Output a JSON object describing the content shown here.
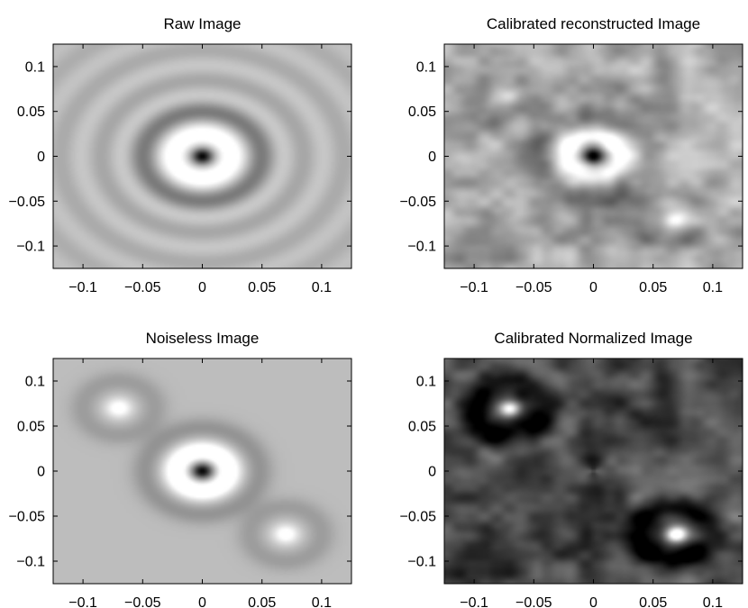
{
  "chart_data": [
    {
      "type": "heatmap",
      "title": "Raw Image",
      "colormap": "gray",
      "xlim": [
        -0.125,
        0.125
      ],
      "ylim": [
        -0.125,
        0.125
      ],
      "xticks": [
        -0.1,
        -0.05,
        0,
        0.05,
        0.1
      ],
      "yticks": [
        0.1,
        0.05,
        0,
        -0.05,
        -0.1
      ],
      "xtick_labels": [
        "−0.1",
        "−0.05",
        "0",
        "0.05",
        "0.1"
      ],
      "ytick_labels": [
        "0.1",
        "0.05",
        "0",
        "−0.05",
        "−0.1"
      ],
      "background_level": 0.72,
      "sources": [
        {
          "x": 0,
          "y": 0,
          "kind": "ring-dark-center",
          "strength": 1.0
        }
      ],
      "concentric_rings": true
    },
    {
      "type": "heatmap",
      "title": "Calibrated reconstructed Image",
      "colormap": "gray",
      "xlim": [
        -0.125,
        0.125
      ],
      "ylim": [
        -0.125,
        0.125
      ],
      "xticks": [
        -0.1,
        -0.05,
        0,
        0.05,
        0.1
      ],
      "yticks": [
        0.1,
        0.05,
        0,
        -0.05,
        -0.1
      ],
      "xtick_labels": [
        "−0.1",
        "−0.05",
        "0",
        "0.05",
        "0.1"
      ],
      "ytick_labels": [
        "0.1",
        "0.05",
        "0",
        "−0.05",
        "−0.1"
      ],
      "background_level": 0.66,
      "sources": [
        {
          "x": 0,
          "y": 0,
          "kind": "ring-dark-center",
          "strength": 1.0
        },
        {
          "x": -0.07,
          "y": 0.07,
          "kind": "bright-spot",
          "strength": 0.8
        },
        {
          "x": 0.07,
          "y": -0.07,
          "kind": "bright-spot",
          "strength": 0.8
        }
      ],
      "mottled_noise": true
    },
    {
      "type": "heatmap",
      "title": "Noiseless Image",
      "colormap": "gray",
      "xlim": [
        -0.125,
        0.125
      ],
      "ylim": [
        -0.125,
        0.125
      ],
      "xticks": [
        -0.1,
        -0.05,
        0,
        0.05,
        0.1
      ],
      "yticks": [
        0.1,
        0.05,
        0,
        -0.05,
        -0.1
      ],
      "xtick_labels": [
        "−0.1",
        "−0.05",
        "0",
        "0.05",
        "0.1"
      ],
      "ytick_labels": [
        "0.1",
        "0.05",
        "0",
        "−0.05",
        "−0.1"
      ],
      "background_level": 0.74,
      "sources": [
        {
          "x": 0,
          "y": 0,
          "kind": "ring-dark-center",
          "strength": 1.0
        },
        {
          "x": -0.07,
          "y": 0.07,
          "kind": "bright-spot",
          "strength": 0.9
        },
        {
          "x": 0.07,
          "y": -0.07,
          "kind": "bright-spot",
          "strength": 0.9
        }
      ]
    },
    {
      "type": "heatmap",
      "title": "Calibrated Normalized Image",
      "colormap": "gray",
      "xlim": [
        -0.125,
        0.125
      ],
      "ylim": [
        -0.125,
        0.125
      ],
      "xticks": [
        -0.1,
        -0.05,
        0,
        0.05,
        0.1
      ],
      "yticks": [
        0.1,
        0.05,
        0,
        -0.05,
        -0.1
      ],
      "xtick_labels": [
        "−0.1",
        "−0.05",
        "0",
        "0.05",
        "0.1"
      ],
      "ytick_labels": [
        "0.1",
        "0.05",
        "0",
        "−0.05",
        "−0.1"
      ],
      "background_level": 0.28,
      "sources": [
        {
          "x": 0,
          "y": 0,
          "kind": "pinwheel-null",
          "strength": 0.5
        },
        {
          "x": -0.07,
          "y": 0.07,
          "kind": "bright-spot-dark-halo",
          "strength": 1.0
        },
        {
          "x": 0.07,
          "y": -0.07,
          "kind": "bright-spot-dark-halo",
          "strength": 1.0
        }
      ],
      "mottled_noise": true
    }
  ]
}
